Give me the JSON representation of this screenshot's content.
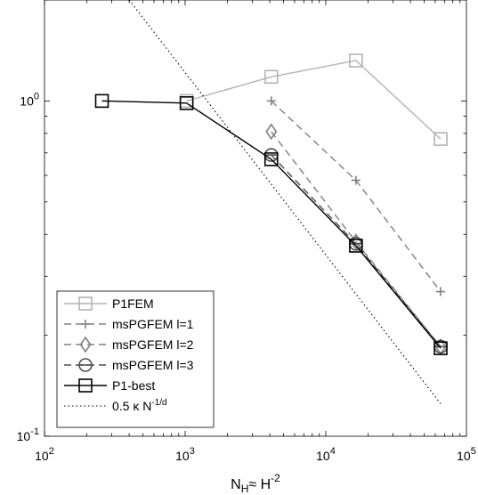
{
  "chart_data": {
    "type": "line",
    "xscale": "log",
    "yscale": "log",
    "xlim": [
      100,
      100000
    ],
    "ylim": [
      0.1,
      2
    ],
    "xlabel": {
      "main": "N",
      "sub": "H",
      "rest": "≈ H",
      "sup": "-2"
    },
    "xticks": [
      {
        "value": 100,
        "base": "10",
        "exp": "2"
      },
      {
        "value": 1000,
        "base": "10",
        "exp": "3"
      },
      {
        "value": 10000,
        "base": "10",
        "exp": "4"
      },
      {
        "value": 100000,
        "base": "10",
        "exp": "5"
      }
    ],
    "yticks": [
      {
        "value": 0.1,
        "base": "10",
        "exp": "-1"
      },
      {
        "value": 1,
        "base": "10",
        "exp": "0"
      }
    ],
    "grid": false,
    "legend_position": "bottom-left",
    "series": [
      {
        "name": "P1FEM",
        "color": "#b3b3b3",
        "dash": "solid",
        "marker": "square",
        "x": [
          1024,
          4096,
          16384,
          65536
        ],
        "y": [
          1.0,
          1.18,
          1.32,
          0.77
        ]
      },
      {
        "name": "msPGFEM l=1",
        "color": "#808080",
        "dash": "dashed",
        "marker": "plus",
        "x": [
          4096,
          16384,
          65536
        ],
        "y": [
          1.0,
          0.58,
          0.27
        ]
      },
      {
        "name": "msPGFEM l=2",
        "color": "#808080",
        "dash": "dashed",
        "marker": "diamond",
        "x": [
          4096,
          16384,
          65536
        ],
        "y": [
          0.81,
          0.38,
          0.185
        ]
      },
      {
        "name": "msPGFEM l=3",
        "color": "#4d4d4d",
        "dash": "dashed",
        "marker": "circle-minus",
        "x": [
          4096,
          16384,
          65536
        ],
        "y": [
          0.69,
          0.375,
          0.185
        ]
      },
      {
        "name": "P1-best",
        "color": "#000000",
        "dash": "solid",
        "marker": "square",
        "x": [
          256,
          1024,
          4096,
          16384,
          65536
        ],
        "y": [
          1.0,
          0.985,
          0.67,
          0.37,
          0.183
        ]
      },
      {
        "name": "0.5 κ N^-1/d",
        "color": "#000000",
        "dash": "dotted",
        "marker": "none",
        "x": [
          400,
          65536
        ],
        "y": [
          2.0,
          0.125
        ]
      }
    ],
    "legend": [
      {
        "label": "P1FEM"
      },
      {
        "label": "msPGFEM l=1"
      },
      {
        "label": "msPGFEM l=2"
      },
      {
        "label": "msPGFEM l=3"
      },
      {
        "label": "P1-best"
      },
      {
        "label": "0.5 κ N",
        "sup": "-1/d"
      }
    ]
  }
}
